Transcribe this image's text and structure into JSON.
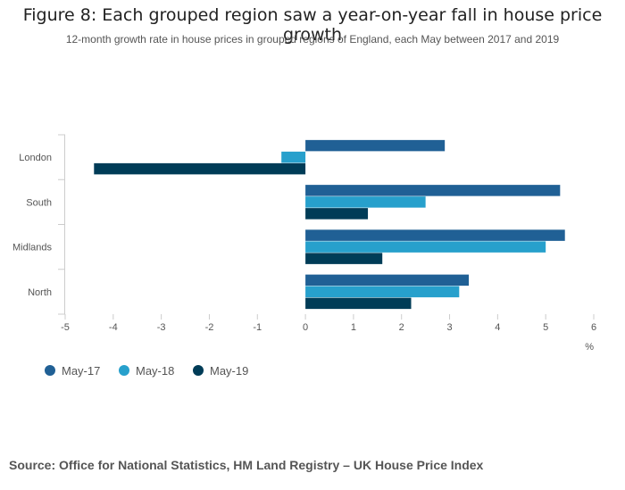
{
  "chart_data": {
    "type": "bar",
    "orientation": "horizontal",
    "title": "Figure 8: Each grouped region saw a year-on-year fall in house price growth",
    "subtitle": "12-month growth rate in house prices in grouped regions of England, each May between 2017 and 2019",
    "categories": [
      "London",
      "South",
      "Midlands",
      "North"
    ],
    "series": [
      {
        "name": "May-17",
        "color": "#206095",
        "values": [
          2.9,
          5.3,
          5.4,
          3.4
        ]
      },
      {
        "name": "May-18",
        "color": "#27a0cc",
        "values": [
          -0.5,
          2.5,
          5.0,
          3.2
        ]
      },
      {
        "name": "May-19",
        "color": "#003c57",
        "values": [
          -4.4,
          1.3,
          1.6,
          2.2
        ]
      }
    ],
    "xlim": [
      -5,
      6
    ],
    "xticks": [
      "-5",
      "-4",
      "-3",
      "-2",
      "-1",
      "0",
      "1",
      "2",
      "3",
      "4",
      "5",
      "6"
    ],
    "xlabel": "%",
    "legend_position": "bottom-left",
    "source": "Source: Office for National Statistics, HM Land Registry – UK House Price Index"
  }
}
